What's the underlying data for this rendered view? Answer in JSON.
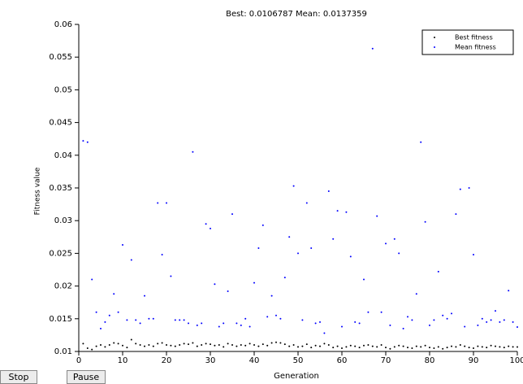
{
  "chart_data": {
    "type": "scatter",
    "title": "Best: 0.0106787 Mean: 0.0137359",
    "x_label": "Generation",
    "y_label": "Fitness value",
    "xlim": [
      0,
      100
    ],
    "ylim": [
      0.01,
      0.06
    ],
    "xticks": [
      0,
      10,
      20,
      30,
      40,
      50,
      60,
      70,
      80,
      90,
      100
    ],
    "yticks": [
      0.01,
      0.015,
      0.02,
      0.025,
      0.03,
      0.035,
      0.04,
      0.045,
      0.05,
      0.055,
      0.06
    ],
    "legend": "top-right",
    "x": [
      1,
      2,
      3,
      4,
      5,
      6,
      7,
      8,
      9,
      10,
      11,
      12,
      13,
      14,
      15,
      16,
      17,
      18,
      19,
      20,
      21,
      22,
      23,
      24,
      25,
      26,
      27,
      28,
      29,
      30,
      31,
      32,
      33,
      34,
      35,
      36,
      37,
      38,
      39,
      40,
      41,
      42,
      43,
      44,
      45,
      46,
      47,
      48,
      49,
      50,
      51,
      52,
      53,
      54,
      55,
      56,
      57,
      58,
      59,
      60,
      61,
      62,
      63,
      64,
      65,
      66,
      67,
      68,
      69,
      70,
      71,
      72,
      73,
      74,
      75,
      76,
      77,
      78,
      79,
      80,
      81,
      82,
      83,
      84,
      85,
      86,
      87,
      88,
      89,
      90,
      91,
      92,
      93,
      94,
      95,
      96,
      97,
      98,
      99,
      100
    ],
    "series": [
      {
        "name": "Best fitness",
        "color": "#000000",
        "values": [
          0.0112,
          0.0105,
          0.0103,
          0.0108,
          0.011,
          0.0107,
          0.011,
          0.0113,
          0.0112,
          0.0109,
          0.0106,
          0.0118,
          0.0112,
          0.011,
          0.0108,
          0.011,
          0.0108,
          0.0112,
          0.0113,
          0.011,
          0.0109,
          0.0108,
          0.011,
          0.0112,
          0.0111,
          0.0113,
          0.0108,
          0.011,
          0.0112,
          0.0111,
          0.0109,
          0.011,
          0.0107,
          0.0112,
          0.011,
          0.0108,
          0.011,
          0.0109,
          0.0112,
          0.011,
          0.0108,
          0.0111,
          0.0109,
          0.0113,
          0.0114,
          0.0113,
          0.0111,
          0.0108,
          0.011,
          0.0107,
          0.0108,
          0.0111,
          0.0106,
          0.0109,
          0.0108,
          0.0112,
          0.011,
          0.0106,
          0.0108,
          0.0105,
          0.0107,
          0.0109,
          0.0108,
          0.0106,
          0.0109,
          0.011,
          0.0108,
          0.0107,
          0.011,
          0.0106,
          0.0104,
          0.0107,
          0.0109,
          0.0108,
          0.0106,
          0.0105,
          0.0108,
          0.0107,
          0.0109,
          0.0106,
          0.0105,
          0.0107,
          0.0104,
          0.0106,
          0.0108,
          0.0107,
          0.011,
          0.0108,
          0.0106,
          0.0105,
          0.0108,
          0.0107,
          0.0106,
          0.0109,
          0.0108,
          0.0107,
          0.0106,
          0.0108,
          0.0107,
          0.0106787
        ]
      },
      {
        "name": "Mean fitness",
        "color": "#0000ff",
        "values": [
          0.0422,
          0.042,
          0.021,
          0.016,
          0.0135,
          0.0145,
          0.0155,
          0.0188,
          0.016,
          0.0263,
          0.0148,
          0.024,
          0.0148,
          0.0143,
          0.0185,
          0.015,
          0.015,
          0.0327,
          0.0248,
          0.0327,
          0.0215,
          0.0148,
          0.0148,
          0.0148,
          0.0143,
          0.0405,
          0.014,
          0.0143,
          0.0295,
          0.0288,
          0.0203,
          0.0138,
          0.0143,
          0.0192,
          0.031,
          0.0143,
          0.014,
          0.015,
          0.0138,
          0.0205,
          0.0258,
          0.0293,
          0.0153,
          0.0185,
          0.0155,
          0.015,
          0.0213,
          0.0275,
          0.0353,
          0.025,
          0.0148,
          0.0327,
          0.0258,
          0.0143,
          0.0145,
          0.0128,
          0.0345,
          0.0272,
          0.0315,
          0.0138,
          0.0313,
          0.0245,
          0.0145,
          0.0143,
          0.021,
          0.016,
          0.0563,
          0.0307,
          0.016,
          0.0265,
          0.014,
          0.0272,
          0.025,
          0.0135,
          0.0153,
          0.0148,
          0.0188,
          0.042,
          0.0298,
          0.014,
          0.0148,
          0.0222,
          0.0155,
          0.015,
          0.0158,
          0.031,
          0.0348,
          0.0138,
          0.035,
          0.0248,
          0.014,
          0.015,
          0.0145,
          0.0148,
          0.0162,
          0.0145,
          0.0148,
          0.0193,
          0.0145,
          0.0137359
        ]
      }
    ]
  },
  "controls": {
    "stop": "Stop",
    "pause": "Pause"
  }
}
